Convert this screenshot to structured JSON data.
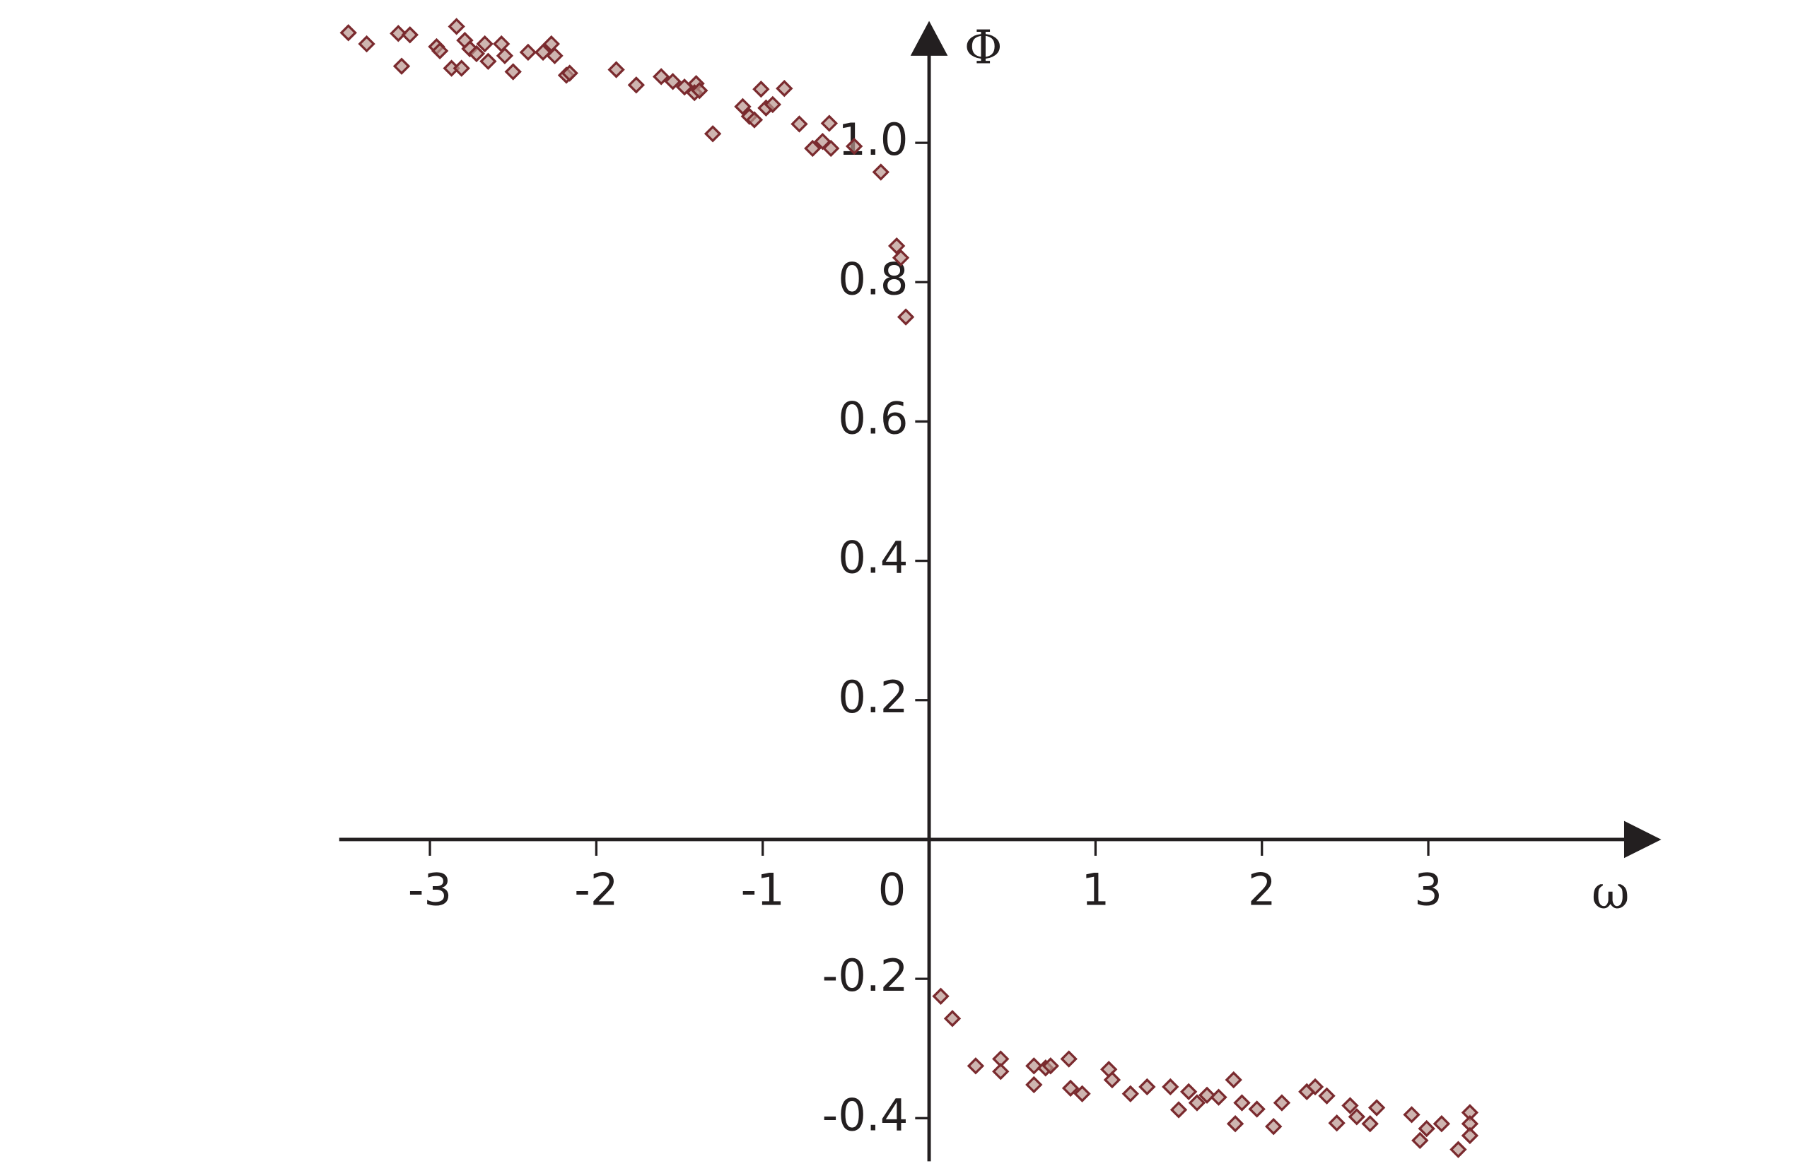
{
  "chart_data": {
    "type": "scatter",
    "x_label": "ω",
    "y_label": "Φ",
    "color": "#b9958f",
    "edge_color": "#7a2a2e",
    "xlim": [
      -3.545,
      4.4
    ],
    "ylim": [
      -0.462,
      1.175
    ],
    "xticks": [
      -3,
      -2,
      -1,
      0,
      1,
      2,
      3
    ],
    "yticks": [
      -0.4,
      -0.2,
      0.2,
      0.4,
      0.6,
      0.8,
      {
        "value": 1,
        "label": "1.0"
      }
    ],
    "x": [
      -3.49,
      -3.38,
      -3.19,
      -3.12,
      -3.17,
      -2.96,
      -2.94,
      -2.84,
      -2.87,
      -2.81,
      -2.79,
      -2.76,
      -2.72,
      -2.67,
      -2.65,
      -2.57,
      -2.55,
      -2.5,
      -2.41,
      -2.32,
      -2.27,
      -2.25,
      -2.18,
      -2.16,
      -1.88,
      -1.76,
      -1.61,
      -1.54,
      -1.47,
      -1.4,
      -1.41,
      -1.38,
      -1.3,
      -1.12,
      -1.08,
      -1.05,
      -1.01,
      -0.98,
      -0.94,
      -0.87,
      -0.78,
      -0.7,
      -0.64,
      -0.6,
      -0.59,
      -0.45,
      -0.29,
      -0.195,
      -0.17,
      -0.14,
      0.07,
      0.14,
      0.28,
      0.43,
      0.43,
      0.63,
      0.63,
      0.7,
      0.73,
      0.84,
      0.85,
      0.92,
      1.08,
      1.1,
      1.21,
      1.31,
      1.45,
      1.5,
      1.56,
      1.61,
      1.67,
      1.74,
      1.83,
      1.84,
      1.88,
      1.97,
      2.07,
      2.12,
      2.27,
      2.32,
      2.39,
      2.45,
      2.53,
      2.57,
      2.65,
      2.69,
      2.9,
      2.95,
      2.99,
      3.08,
      3.18,
      3.25,
      3.25,
      3.25
    ],
    "y": [
      1.158,
      1.142,
      1.157,
      1.155,
      1.11,
      1.138,
      1.132,
      1.167,
      1.107,
      1.107,
      1.147,
      1.135,
      1.128,
      1.142,
      1.117,
      1.142,
      1.125,
      1.102,
      1.13,
      1.13,
      1.142,
      1.125,
      1.097,
      1.1,
      1.105,
      1.083,
      1.095,
      1.088,
      1.08,
      1.085,
      1.072,
      1.075,
      1.013,
      1.052,
      1.038,
      1.033,
      1.077,
      1.05,
      1.055,
      1.078,
      1.027,
      0.992,
      1.002,
      1.028,
      0.992,
      0.995,
      0.958,
      0.852,
      0.835,
      0.75,
      -0.225,
      -0.257,
      -0.325,
      -0.315,
      -0.333,
      -0.325,
      -0.352,
      -0.328,
      -0.325,
      -0.315,
      -0.357,
      -0.365,
      -0.33,
      -0.345,
      -0.365,
      -0.355,
      -0.355,
      -0.388,
      -0.362,
      -0.378,
      -0.367,
      -0.37,
      -0.345,
      -0.408,
      -0.378,
      -0.387,
      -0.412,
      -0.378,
      -0.362,
      -0.355,
      -0.368,
      -0.407,
      -0.382,
      -0.398,
      -0.408,
      -0.385,
      -0.395,
      -0.432,
      -0.415,
      -0.408,
      -0.445,
      -0.392,
      -0.408,
      -0.425
    ]
  }
}
